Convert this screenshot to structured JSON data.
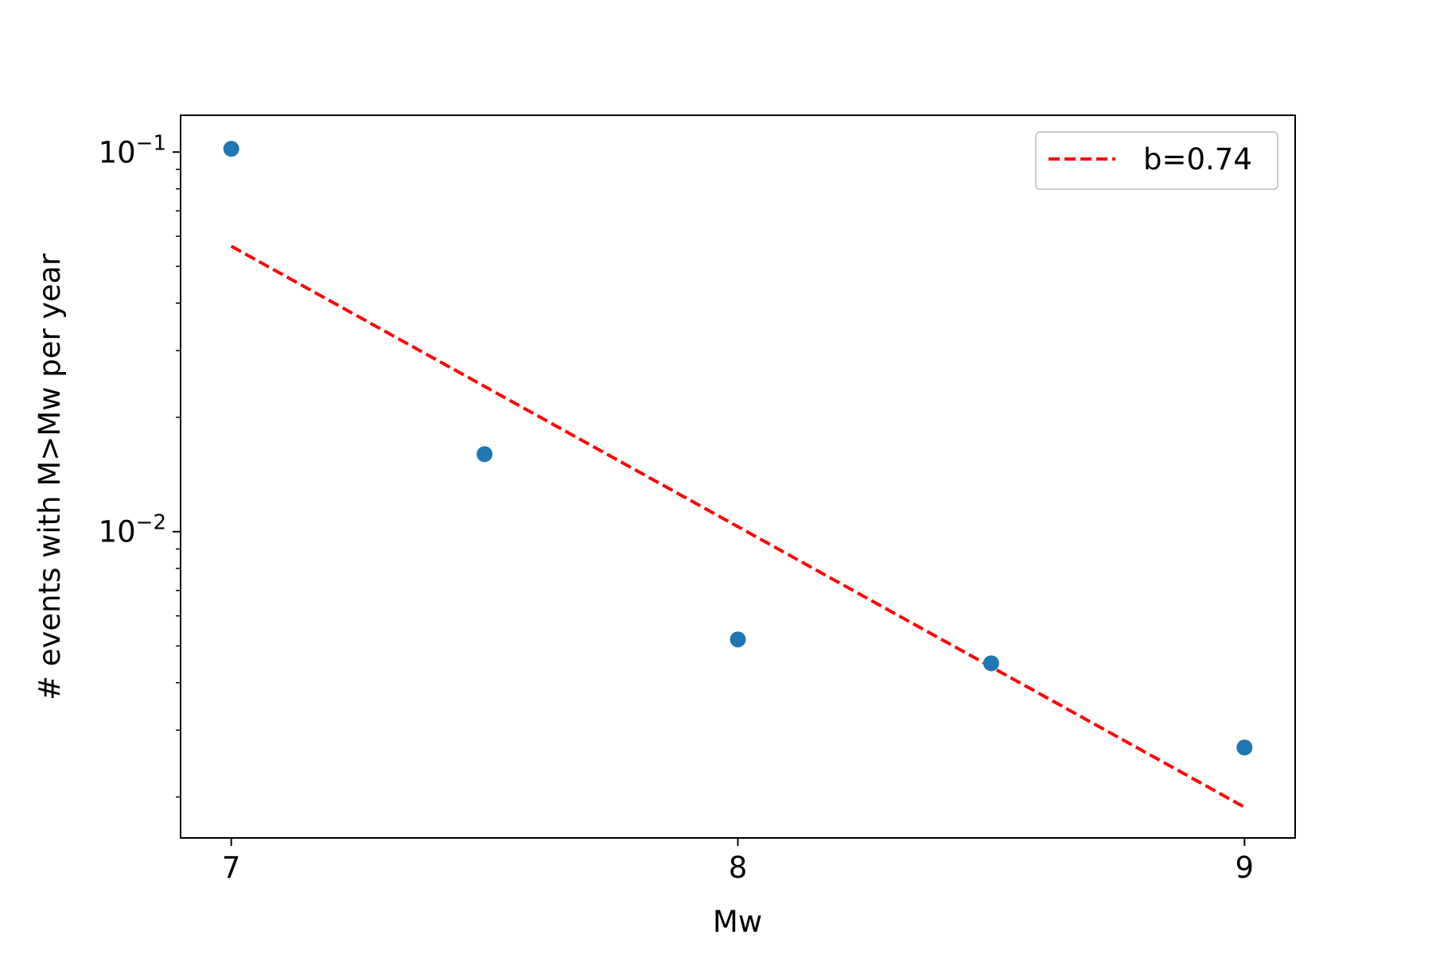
{
  "chart_data": {
    "type": "scatter",
    "title": "",
    "xlabel": "Mw",
    "ylabel": "# events with M>Mw per year",
    "xlim": [
      6.9,
      9.1
    ],
    "ylim": [
      0.00156,
      0.125
    ],
    "yscale": "log",
    "grid": false,
    "legend_position": "top-right",
    "x_ticks": [
      {
        "value": 7,
        "label": "7"
      },
      {
        "value": 8,
        "label": "8"
      },
      {
        "value": 9,
        "label": "9"
      }
    ],
    "y_ticks": [
      {
        "value": 0.1,
        "base": "10",
        "exp": "−1"
      },
      {
        "value": 0.01,
        "base": "10",
        "exp": "−2"
      }
    ],
    "series": [
      {
        "kind": "scatter",
        "color": "#1f77b4",
        "points": [
          {
            "x": 7.0,
            "y": 0.102
          },
          {
            "x": 7.5,
            "y": 0.016
          },
          {
            "x": 8.0,
            "y": 0.0052
          },
          {
            "x": 8.5,
            "y": 0.0045
          },
          {
            "x": 9.0,
            "y": 0.0027
          }
        ]
      },
      {
        "kind": "line",
        "name": "b=0.74",
        "color": "#ff0000",
        "dash": "dashed",
        "points": [
          {
            "x": 7.0,
            "y": 0.0565
          },
          {
            "x": 9.0,
            "y": 0.00188
          }
        ]
      }
    ]
  }
}
